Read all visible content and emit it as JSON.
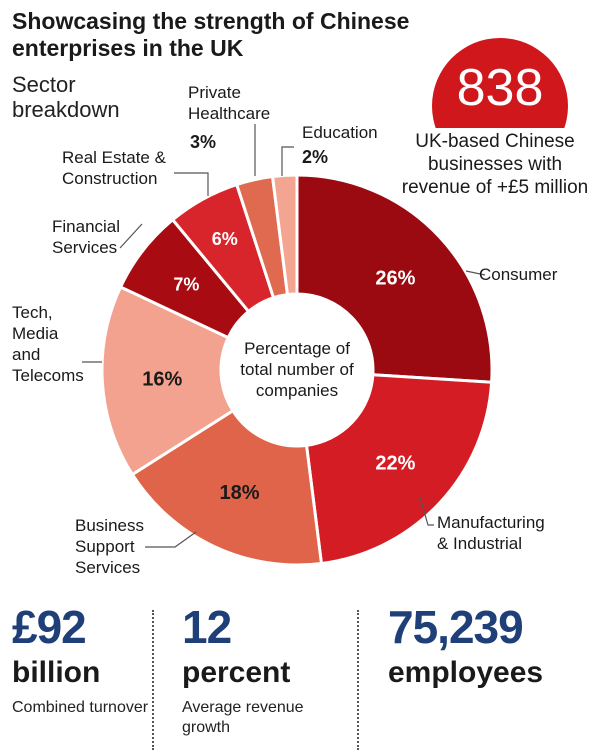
{
  "header": {
    "title": "Showcasing the strength of Chinese enterprises in the UK",
    "subtitle": "Sector breakdown"
  },
  "badge": {
    "value": "838",
    "text": "UK-based Chinese businesses with revenue of +£5 million"
  },
  "chart_data": {
    "type": "pie",
    "donut": true,
    "center_label": "Percentage of total number of companies",
    "categories": [
      "Consumer",
      "Manufacturing & Industrial",
      "Business Support Services",
      "Tech, Media and Telecoms",
      "Financial Services",
      "Real Estate & Construction",
      "Private Healthcare",
      "Education"
    ],
    "values": [
      26,
      22,
      18,
      16,
      7,
      6,
      3,
      2
    ],
    "value_labels": [
      "26%",
      "22%",
      "18%",
      "16%",
      "7%",
      "6%",
      "3%",
      "2%"
    ],
    "colors": [
      "#9b0a10",
      "#d41c24",
      "#e0644a",
      "#f2a28e",
      "#a80c12",
      "#d8242b",
      "#e06a50",
      "#f4a592"
    ],
    "legend": "callout labels"
  },
  "stats": [
    {
      "value": "£92",
      "unit": "billion",
      "desc": "Combined turnover"
    },
    {
      "value": "12",
      "unit": "percent",
      "desc": "Average revenue growth"
    },
    {
      "value": "75,239",
      "unit": "employees",
      "desc": ""
    }
  ]
}
